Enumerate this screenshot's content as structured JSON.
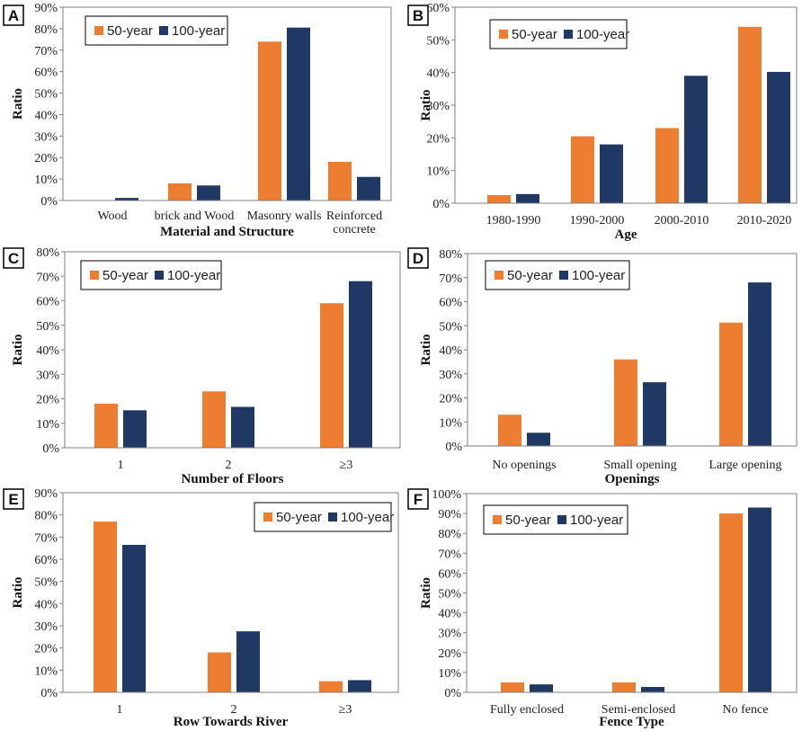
{
  "colors": {
    "series_50": "#ED7D31",
    "series_100": "#203864"
  },
  "chart_data": [
    {
      "type": "bar",
      "panel": "A",
      "categories": [
        [
          "Wood"
        ],
        [
          "brick and Wood"
        ],
        [
          "Masonry  walls"
        ],
        [
          "Reinforced",
          "concrete"
        ]
      ],
      "series": [
        {
          "name": "50-year",
          "values": [
            0,
            8,
            74,
            18
          ]
        },
        {
          "name": "100-year",
          "values": [
            1.2,
            7,
            80.5,
            11
          ]
        }
      ],
      "ylim": [
        0,
        90
      ],
      "ystep": 10,
      "yticks_suffix": "%",
      "xlabel": "Material and Structure",
      "ylabel": "Ratio",
      "legend": "top-left"
    },
    {
      "type": "bar",
      "panel": "B",
      "categories": [
        [
          "1980-1990"
        ],
        [
          "1990-2000"
        ],
        [
          "2000-2010"
        ],
        [
          "2010-2020"
        ]
      ],
      "series": [
        {
          "name": "50-year",
          "values": [
            2.5,
            20.5,
            23,
            54
          ]
        },
        {
          "name": "100-year",
          "values": [
            2.8,
            18,
            39,
            40.2
          ]
        }
      ],
      "ylim": [
        0,
        60
      ],
      "ystep": 10,
      "yticks_suffix": "%",
      "xlabel": "Age",
      "ylabel": "Ratio",
      "legend": "top-left"
    },
    {
      "type": "bar",
      "panel": "C",
      "categories": [
        [
          "1"
        ],
        [
          "2"
        ],
        [
          "≥3"
        ]
      ],
      "series": [
        {
          "name": "50-year",
          "values": [
            18,
            23,
            59
          ]
        },
        {
          "name": "100-year",
          "values": [
            15.3,
            16.7,
            68
          ]
        }
      ],
      "ylim": [
        0,
        80
      ],
      "ystep": 10,
      "yticks_suffix": "%",
      "xlabel": "Number of Floors",
      "ylabel": "Ratio",
      "legend": "top-left"
    },
    {
      "type": "bar",
      "panel": "D",
      "categories": [
        [
          "No openings"
        ],
        [
          "Small opening"
        ],
        [
          "Large opening"
        ]
      ],
      "series": [
        {
          "name": "50-year",
          "values": [
            13,
            36,
            51.3
          ]
        },
        {
          "name": "100-year",
          "values": [
            5.5,
            26.5,
            68
          ]
        }
      ],
      "ylim": [
        0,
        80
      ],
      "ystep": 10,
      "yticks_suffix": "%",
      "xlabel": "Openings",
      "ylabel": "Ratio",
      "legend": "top-left"
    },
    {
      "type": "bar",
      "panel": "E",
      "categories": [
        [
          "1"
        ],
        [
          "2"
        ],
        [
          "≥3"
        ]
      ],
      "series": [
        {
          "name": "50-year",
          "values": [
            77,
            18,
            5
          ]
        },
        {
          "name": "100-year",
          "values": [
            66.5,
            27.5,
            5.5
          ]
        }
      ],
      "ylim": [
        0,
        90
      ],
      "ystep": 10,
      "yticks_suffix": "%",
      "xlabel": "Row Towards River",
      "ylabel": "Ratio",
      "legend": "top-right"
    },
    {
      "type": "bar",
      "panel": "F",
      "categories": [
        [
          "Fully enclosed"
        ],
        [
          "Semi-enclosed"
        ],
        [
          "No fence"
        ]
      ],
      "series": [
        {
          "name": "50-year",
          "values": [
            5,
            5,
            90
          ]
        },
        {
          "name": "100-year",
          "values": [
            4,
            2.7,
            93
          ]
        }
      ],
      "ylim": [
        0,
        100
      ],
      "ystep": 10,
      "yticks_suffix": "%",
      "xlabel": "Fence Type",
      "ylabel": "Ratio",
      "legend": "top-left"
    }
  ]
}
